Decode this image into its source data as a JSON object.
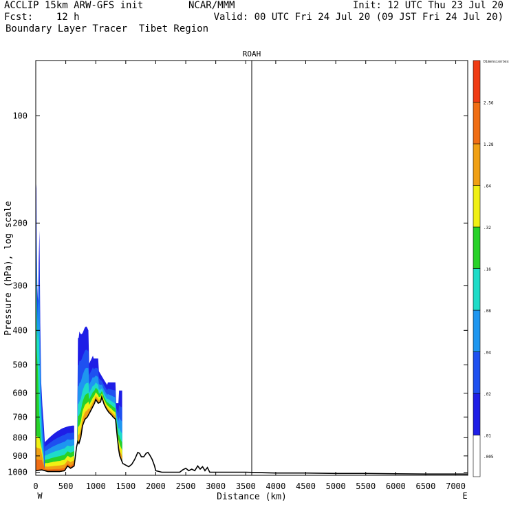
{
  "header": {
    "line1_left": "ACCLIP 15km ARW-GFS init",
    "line1_center": "NCAR/MMM",
    "line1_right": "Init: 12 UTC Thu 23 Jul 20",
    "line2_left": "Fcst:    12 h",
    "line2_right": "Valid: 00 UTC Fri 24 Jul 20 (09 JST Fri 24 Jul 20)",
    "line3_left": "Boundary Layer Tracer  Tibet Region"
  },
  "chart_data": {
    "type": "heatmap",
    "title": "ROAH",
    "xlabel": "Distance (km)",
    "ylabel": "Pressure (hPa), log scale",
    "x_range": [
      0,
      7200
    ],
    "y_range_hpa": [
      1020,
      70
    ],
    "y_log_scale": true,
    "x_ticks": [
      0,
      500,
      1000,
      1500,
      2000,
      2500,
      3000,
      3500,
      4000,
      4500,
      5000,
      5500,
      6000,
      6500,
      7000
    ],
    "y_ticks": [
      100,
      200,
      300,
      400,
      500,
      600,
      700,
      800,
      900,
      1000
    ],
    "x_end_labels": {
      "left": "W",
      "right": "E"
    },
    "vertical_marker_km": 3600,
    "colorbar": {
      "header": "Dimensionless",
      "labels": [
        ".005",
        ".01",
        ".02",
        ".04",
        ".08",
        ".16",
        ".32",
        ".64",
        "1.28",
        "2.56"
      ],
      "colors": [
        "#ffffff",
        "#1e1ee6",
        "#1e50f0",
        "#1e96f0",
        "#1edcc8",
        "#28d228",
        "#f0f014",
        "#f0a014",
        "#f06e14",
        "#f03c14"
      ]
    },
    "terrain_profile": {
      "x": [
        0,
        100,
        200,
        300,
        400,
        480,
        530,
        580,
        640,
        680,
        700,
        720,
        750,
        780,
        820,
        860,
        900,
        940,
        980,
        1000,
        1040,
        1080,
        1100,
        1140,
        1180,
        1220,
        1260,
        1290,
        1330,
        1360,
        1380,
        1400,
        1450,
        1500,
        1550,
        1600,
        1650,
        1700,
        1730,
        1760,
        1800,
        1840,
        1870,
        1900,
        1940,
        1980,
        2000,
        2050,
        2100,
        2200,
        2300,
        2400,
        2450,
        2500,
        2550,
        2600,
        2650,
        2700,
        2740,
        2780,
        2820,
        2860,
        2900,
        3000,
        3200,
        3500,
        4000,
        4500,
        5000,
        5500,
        6000,
        6500,
        7000,
        7200
      ],
      "pressure_hpa": [
        990,
        985,
        995,
        995,
        995,
        990,
        960,
        975,
        960,
        850,
        820,
        830,
        800,
        740,
        710,
        700,
        680,
        660,
        640,
        625,
        640,
        635,
        615,
        645,
        665,
        680,
        690,
        700,
        710,
        800,
        860,
        900,
        945,
        955,
        965,
        950,
        920,
        880,
        885,
        905,
        905,
        885,
        880,
        895,
        920,
        960,
        990,
        995,
        1000,
        1000,
        1000,
        1000,
        985,
        975,
        990,
        980,
        990,
        960,
        980,
        965,
        990,
        970,
        1000,
        1000,
        1000,
        1000,
        1005,
        1005,
        1008,
        1008,
        1010,
        1012,
        1012,
        1012
      ]
    },
    "tracer_plumes": [
      {
        "x_range_km": [
          0,
          150
        ],
        "max_concentration": ">=2.56",
        "top_hpa": 150
      },
      {
        "x_range_km": [
          150,
          640
        ],
        "max_concentration": ">=2.56",
        "top_hpa": 730
      },
      {
        "x_range_km": [
          660,
          1450
        ],
        "max_concentration": ">=0.64",
        "top_hpa": 395
      }
    ]
  }
}
